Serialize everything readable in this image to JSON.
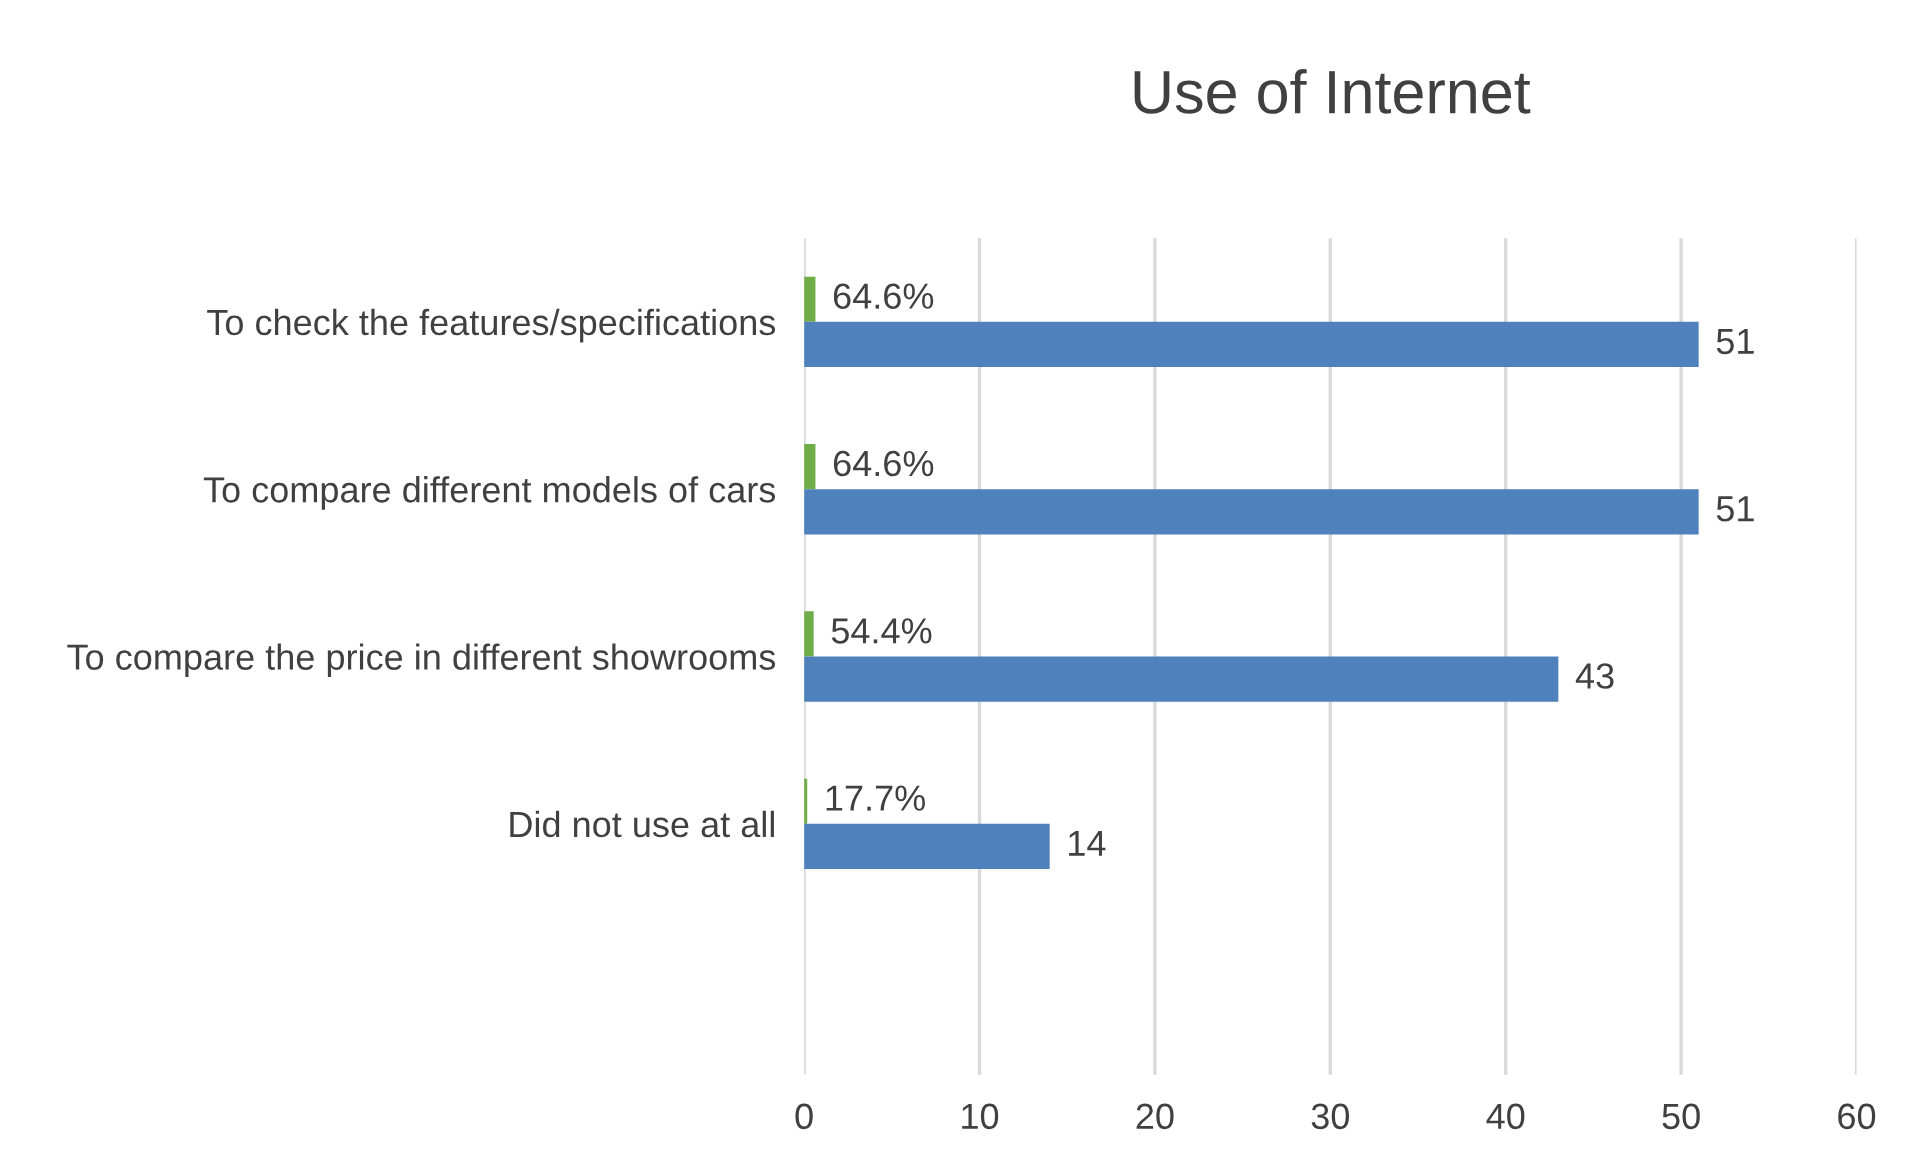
{
  "chart_data": {
    "type": "bar",
    "orientation": "horizontal",
    "title": "Use of Internet",
    "categories": [
      "To check the features/specifications",
      "To compare different models of cars",
      "To compare the price in different showrooms",
      "Did not use at all",
      null
    ],
    "series": [
      {
        "color": "#70ad47",
        "values": [
          0.646,
          0.646,
          0.544,
          0.177,
          null
        ],
        "value_labels": [
          "64.6%",
          "64.6%",
          "54.4%",
          "17.7%",
          null
        ]
      },
      {
        "color": "#4f81bd",
        "values": [
          51,
          51,
          43,
          14,
          null
        ],
        "value_labels": [
          "51",
          "51",
          "43",
          "14",
          null
        ]
      }
    ],
    "xlim": [
      0,
      60
    ],
    "xticks": [
      0,
      10,
      20,
      30,
      40,
      50,
      60
    ],
    "grid": "x",
    "legend": false
  }
}
